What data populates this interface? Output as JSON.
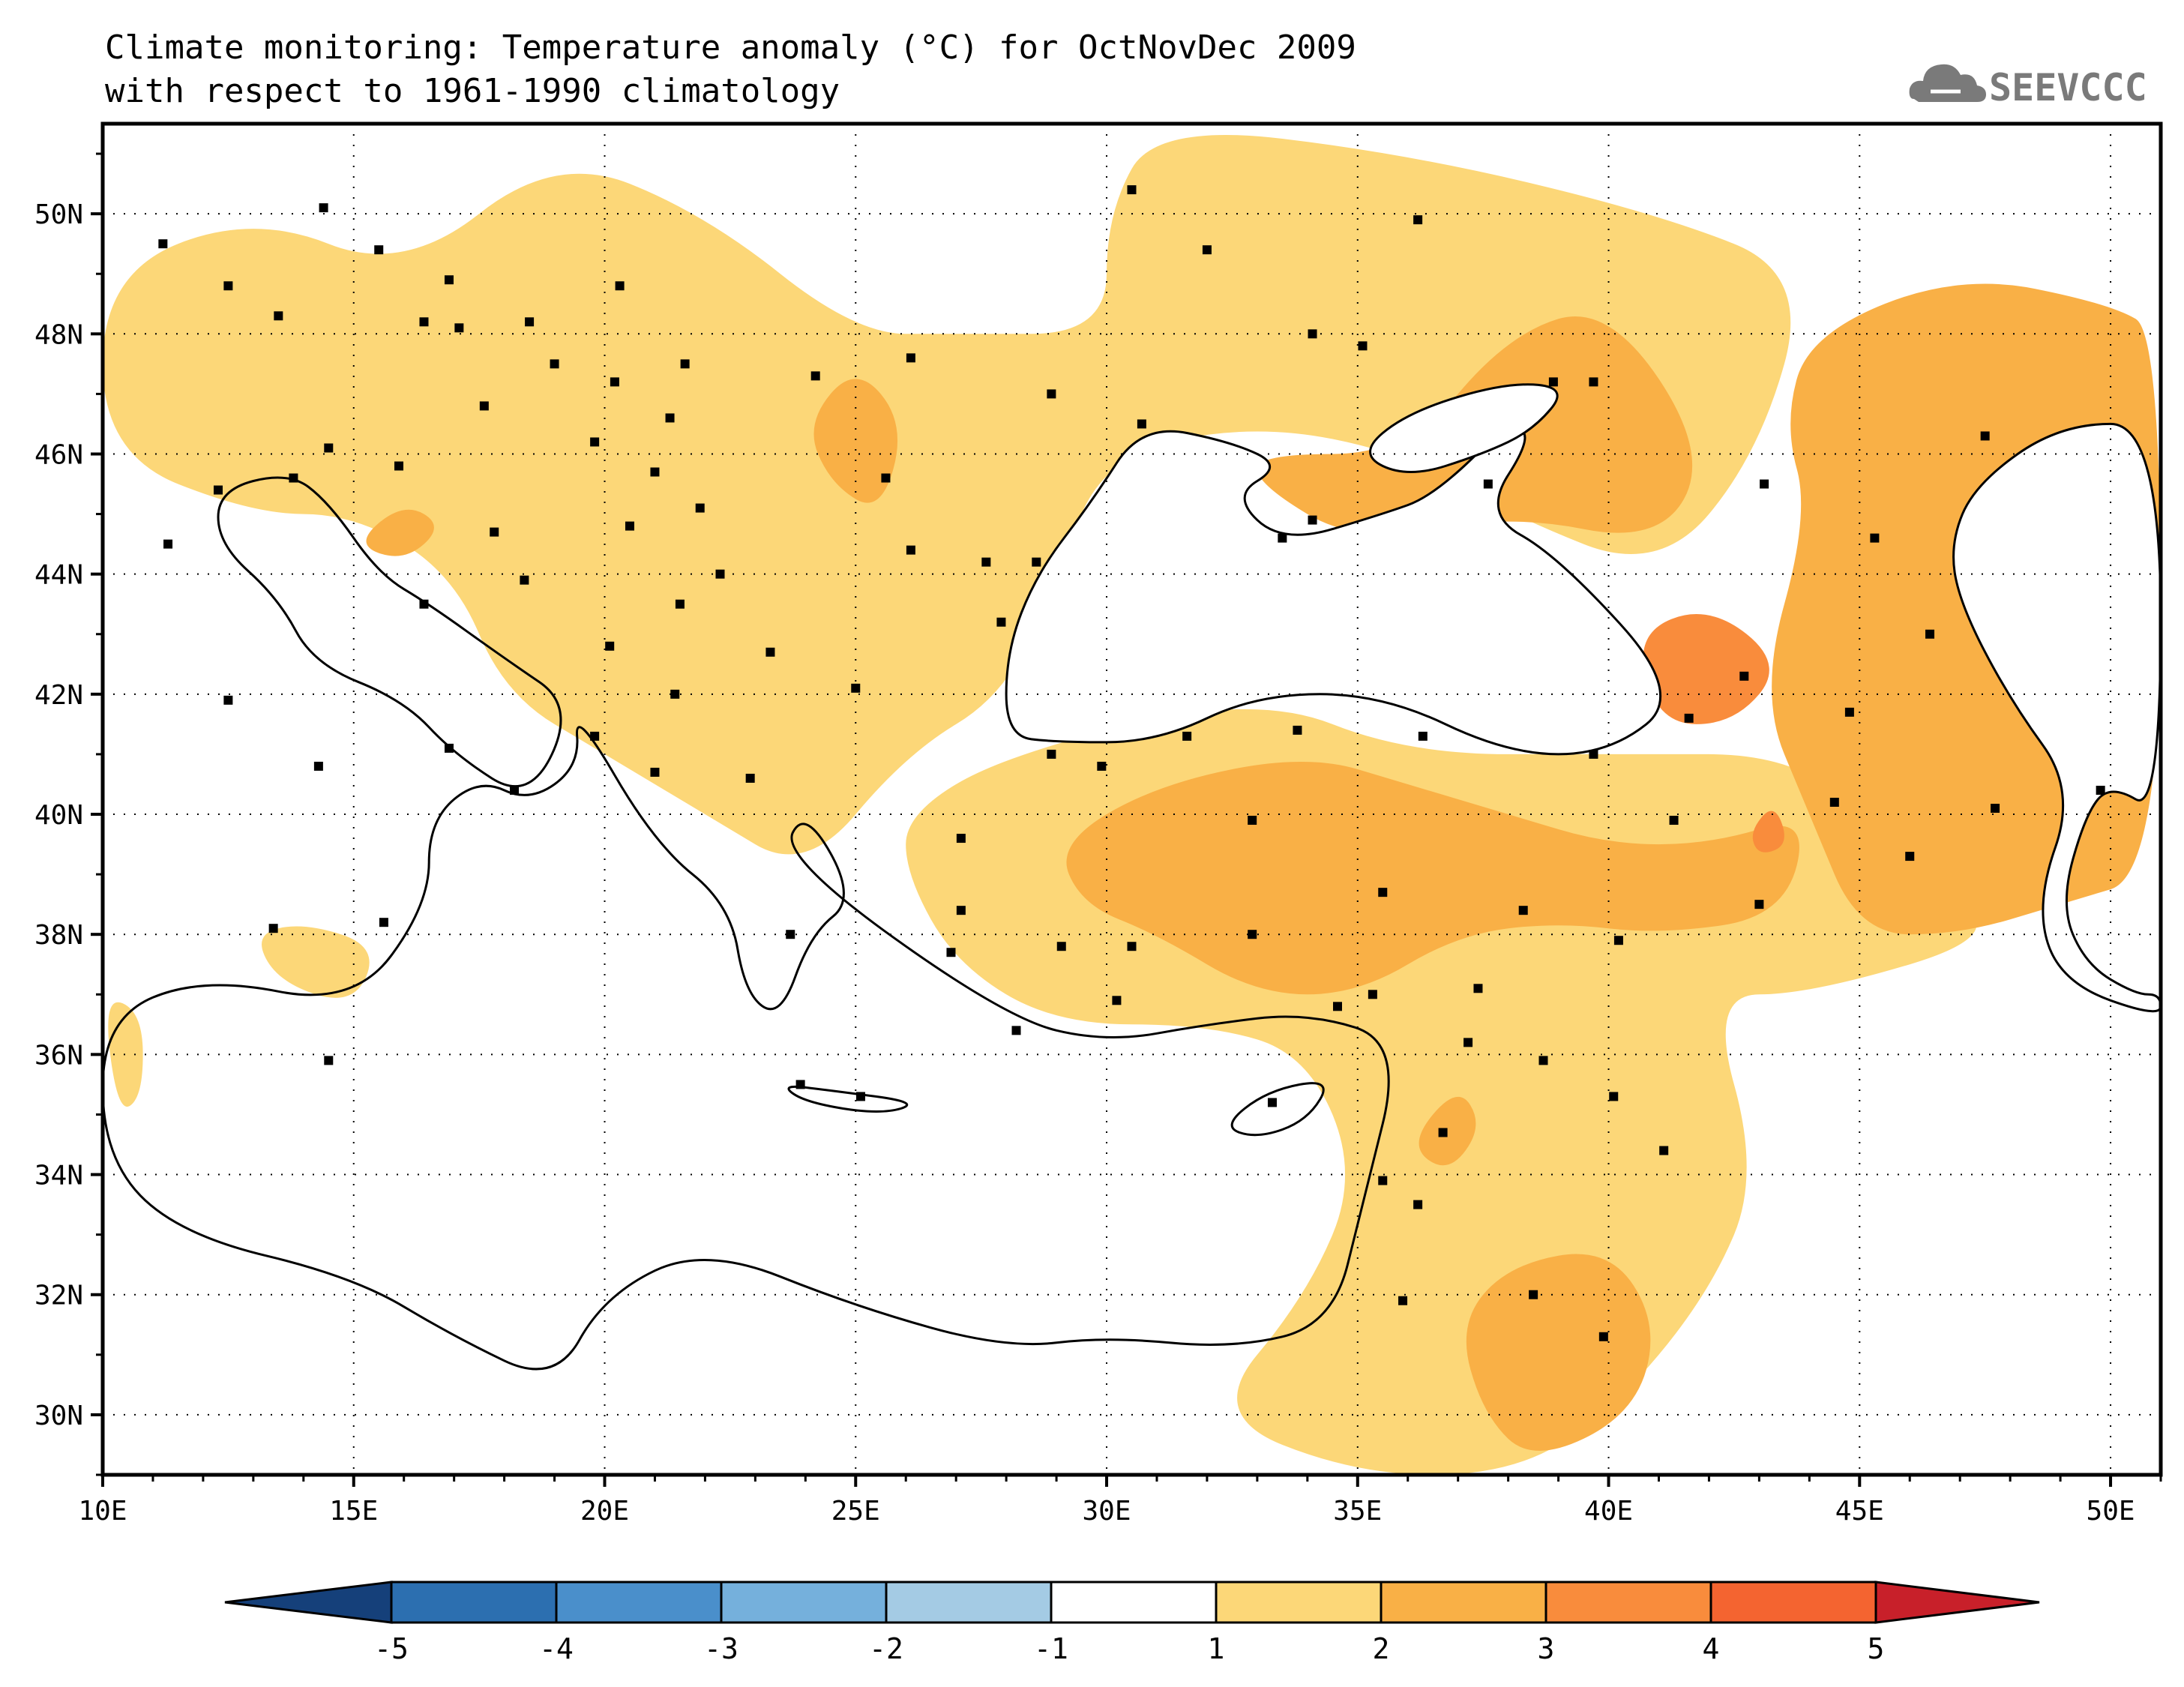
{
  "title": {
    "line1": "Climate monitoring: Temperature anomaly (°C) for OctNovDec 2009",
    "line2": "with respect to 1961-1990 climatology"
  },
  "logo": {
    "text": "SEEVCCC",
    "color": "#7a7a7a"
  },
  "map": {
    "lon_range": [
      10,
      51
    ],
    "lat_range": [
      29,
      51.5
    ],
    "lon_ticks": [
      10,
      15,
      20,
      25,
      30,
      35,
      40,
      45,
      50
    ],
    "lat_ticks": [
      30,
      32,
      34,
      36,
      38,
      40,
      42,
      44,
      46,
      48,
      50
    ],
    "lon_tick_labels": [
      "10E",
      "15E",
      "20E",
      "25E",
      "30E",
      "35E",
      "40E",
      "45E",
      "50E"
    ],
    "lat_tick_labels": [
      "30N",
      "32N",
      "34N",
      "36N",
      "38N",
      "40N",
      "42N",
      "44N",
      "46N",
      "48N",
      "50N"
    ],
    "grid": "dotted",
    "anomaly_regions": [
      {
        "class": "1 to 2",
        "color": "#fcd778",
        "polygon": [
          [
            10,
            49
          ],
          [
            13,
            50
          ],
          [
            16,
            49
          ],
          [
            19,
            51
          ],
          [
            22,
            50
          ],
          [
            25,
            48
          ],
          [
            27,
            48
          ],
          [
            30,
            48
          ],
          [
            30,
            50
          ],
          [
            31,
            51.5
          ],
          [
            36,
            51
          ],
          [
            41,
            50
          ],
          [
            44,
            49
          ],
          [
            43,
            46
          ],
          [
            41,
            44
          ],
          [
            38,
            45
          ],
          [
            36,
            46
          ],
          [
            33,
            46.5
          ],
          [
            30,
            46
          ],
          [
            29,
            44
          ],
          [
            28,
            42
          ],
          [
            26,
            41
          ],
          [
            24,
            39
          ],
          [
            22,
            40
          ],
          [
            20,
            41
          ],
          [
            18,
            42
          ],
          [
            17,
            44
          ],
          [
            15,
            45
          ],
          [
            13,
            45
          ],
          [
            10,
            46
          ]
        ]
      },
      {
        "class": "1 to 2",
        "color": "#fcd778",
        "polygon": [
          [
            26,
            40
          ],
          [
            28,
            41
          ],
          [
            33,
            42
          ],
          [
            36,
            41
          ],
          [
            40,
            41
          ],
          [
            44,
            41
          ],
          [
            46,
            39
          ],
          [
            48,
            38
          ],
          [
            44,
            37
          ],
          [
            42,
            37
          ],
          [
            43,
            34
          ],
          [
            42,
            32
          ],
          [
            40,
            30
          ],
          [
            38,
            29
          ],
          [
            35,
            29
          ],
          [
            32,
            30
          ],
          [
            34,
            32
          ],
          [
            35,
            34
          ],
          [
            34,
            36
          ],
          [
            32,
            36.5
          ],
          [
            29,
            36.5
          ],
          [
            27,
            37.5
          ],
          [
            26,
            39
          ]
        ]
      },
      {
        "class": "1 to 2",
        "color": "#fcd778",
        "polygon": [
          [
            13,
            38
          ],
          [
            14,
            38.2
          ],
          [
            15.5,
            37.8
          ],
          [
            15,
            36.8
          ],
          [
            13.5,
            37.2
          ]
        ]
      },
      {
        "class": "1 to 2",
        "color": "#fcd778",
        "polygon": [
          [
            10,
            37
          ],
          [
            10.8,
            36.7
          ],
          [
            10.8,
            35.3
          ],
          [
            10.3,
            35
          ]
        ]
      },
      {
        "class": "2 to 3",
        "color": "#f9b046",
        "polygon": [
          [
            29,
            39.5
          ],
          [
            31,
            40.5
          ],
          [
            34,
            41
          ],
          [
            36,
            40.5
          ],
          [
            38,
            40
          ],
          [
            40,
            39.5
          ],
          [
            42,
            39.5
          ],
          [
            44,
            40
          ],
          [
            43.5,
            38.3
          ],
          [
            41,
            38
          ],
          [
            39,
            38.2
          ],
          [
            37,
            38
          ],
          [
            35,
            37
          ],
          [
            33,
            37
          ],
          [
            31,
            38
          ],
          [
            29.5,
            38.5
          ]
        ]
      },
      {
        "class": "2 to 3",
        "color": "#f9b046",
        "polygon": [
          [
            44,
            48
          ],
          [
            47,
            49
          ],
          [
            50,
            48.5
          ],
          [
            51,
            48
          ],
          [
            51,
            39
          ],
          [
            49,
            38.5
          ],
          [
            47,
            38
          ],
          [
            45,
            38
          ],
          [
            44,
            40
          ],
          [
            43,
            42
          ],
          [
            44,
            45
          ],
          [
            43.5,
            46.5
          ]
        ]
      },
      {
        "class": "2 to 3",
        "color": "#f9b046",
        "polygon": [
          [
            33,
            46
          ],
          [
            36,
            46
          ],
          [
            38,
            48
          ],
          [
            40,
            48.5
          ],
          [
            42,
            46
          ],
          [
            41,
            44.5
          ],
          [
            38,
            45
          ],
          [
            35,
            44.5
          ],
          [
            33,
            45.5
          ]
        ]
      },
      {
        "class": "2 to 3",
        "color": "#f9b046",
        "polygon": [
          [
            37,
            31.5
          ],
          [
            38,
            32.5
          ],
          [
            40,
            32.8
          ],
          [
            41,
            31.5
          ],
          [
            40.5,
            30
          ],
          [
            38.5,
            29.2
          ],
          [
            37.5,
            30
          ]
        ]
      },
      {
        "class": "2 to 3",
        "color": "#f9b046",
        "polygon": [
          [
            24,
            46.5
          ],
          [
            25,
            47.5
          ],
          [
            26,
            46.5
          ],
          [
            25.5,
            45
          ],
          [
            24.5,
            45.5
          ]
        ]
      },
      {
        "class": "2 to 3",
        "color": "#f9b046",
        "polygon": [
          [
            36,
            34.5
          ],
          [
            37,
            35.5
          ],
          [
            37.5,
            34.8
          ],
          [
            36.8,
            34
          ]
        ]
      },
      {
        "class": "2 to 3",
        "color": "#f9b046",
        "polygon": [
          [
            15,
            44.5
          ],
          [
            16,
            45.2
          ],
          [
            16.8,
            44.8
          ],
          [
            16,
            44.2
          ]
        ]
      },
      {
        "class": "3 to 4",
        "color": "#f98c3c",
        "polygon": [
          [
            40.5,
            43
          ],
          [
            42,
            43.5
          ],
          [
            43.5,
            42.5
          ],
          [
            42.5,
            41.5
          ],
          [
            41,
            41.5
          ]
        ]
      },
      {
        "class": "3 to 4",
        "color": "#f98c3c",
        "polygon": [
          [
            42.8,
            39.7
          ],
          [
            43.3,
            40.2
          ],
          [
            43.6,
            39.5
          ],
          [
            43,
            39.3
          ]
        ]
      }
    ],
    "stations": [
      [
        11.2,
        49.5
      ],
      [
        12.5,
        48.8
      ],
      [
        13.5,
        48.3
      ],
      [
        14.4,
        50.1
      ],
      [
        16.4,
        48.2
      ],
      [
        17.1,
        48.1
      ],
      [
        19.0,
        47.5
      ],
      [
        21.6,
        47.5
      ],
      [
        20.3,
        48.8
      ],
      [
        21.3,
        46.6
      ],
      [
        20.5,
        44.8
      ],
      [
        21.5,
        43.5
      ],
      [
        22.3,
        44.0
      ],
      [
        20.1,
        42.8
      ],
      [
        18.4,
        43.9
      ],
      [
        17.8,
        44.7
      ],
      [
        16.4,
        43.5
      ],
      [
        15.9,
        45.8
      ],
      [
        14.5,
        46.1
      ],
      [
        13.8,
        45.6
      ],
      [
        12.3,
        45.4
      ],
      [
        11.3,
        44.5
      ],
      [
        12.5,
        41.9
      ],
      [
        14.3,
        40.8
      ],
      [
        16.9,
        41.1
      ],
      [
        18.2,
        40.4
      ],
      [
        15.6,
        38.2
      ],
      [
        13.4,
        38.1
      ],
      [
        14.5,
        35.9
      ],
      [
        23.7,
        38.0
      ],
      [
        22.9,
        40.6
      ],
      [
        21.0,
        40.7
      ],
      [
        19.8,
        41.3
      ],
      [
        21.4,
        42.0
      ],
      [
        23.3,
        42.7
      ],
      [
        25.0,
        42.1
      ],
      [
        26.1,
        44.4
      ],
      [
        27.6,
        44.2
      ],
      [
        28.6,
        44.2
      ],
      [
        27.9,
        43.2
      ],
      [
        25.6,
        45.6
      ],
      [
        24.2,
        47.3
      ],
      [
        26.1,
        47.6
      ],
      [
        28.9,
        47.0
      ],
      [
        30.7,
        46.5
      ],
      [
        30.5,
        50.4
      ],
      [
        32.0,
        49.4
      ],
      [
        34.1,
        48.0
      ],
      [
        36.2,
        49.9
      ],
      [
        35.1,
        47.8
      ],
      [
        33.5,
        44.6
      ],
      [
        34.1,
        44.9
      ],
      [
        37.6,
        45.5
      ],
      [
        39.7,
        47.2
      ],
      [
        38.9,
        47.2
      ],
      [
        44.5,
        40.2
      ],
      [
        44.8,
        41.7
      ],
      [
        42.7,
        42.3
      ],
      [
        41.6,
        41.6
      ],
      [
        39.7,
        41.0
      ],
      [
        36.3,
        41.3
      ],
      [
        32.9,
        39.9
      ],
      [
        35.5,
        38.7
      ],
      [
        38.3,
        38.4
      ],
      [
        41.3,
        39.9
      ],
      [
        43.0,
        38.5
      ],
      [
        40.2,
        37.9
      ],
      [
        37.4,
        37.1
      ],
      [
        35.3,
        37.0
      ],
      [
        34.6,
        36.8
      ],
      [
        32.9,
        38.0
      ],
      [
        30.5,
        37.8
      ],
      [
        29.1,
        37.8
      ],
      [
        27.1,
        38.4
      ],
      [
        26.9,
        37.7
      ],
      [
        27.1,
        39.6
      ],
      [
        28.9,
        41.0
      ],
      [
        29.9,
        40.8
      ],
      [
        31.6,
        41.3
      ],
      [
        33.8,
        41.4
      ],
      [
        36.2,
        33.5
      ],
      [
        35.5,
        33.9
      ],
      [
        36.7,
        34.7
      ],
      [
        37.2,
        36.2
      ],
      [
        38.7,
        35.9
      ],
      [
        40.1,
        35.3
      ],
      [
        41.1,
        34.4
      ],
      [
        35.9,
        31.9
      ],
      [
        38.5,
        32.0
      ],
      [
        39.9,
        31.3
      ],
      [
        33.3,
        35.2
      ],
      [
        25.1,
        35.3
      ],
      [
        23.9,
        35.5
      ],
      [
        28.2,
        36.4
      ],
      [
        30.2,
        36.9
      ],
      [
        46.0,
        39.3
      ],
      [
        47.7,
        40.1
      ],
      [
        49.8,
        40.4
      ],
      [
        46.4,
        43.0
      ],
      [
        47.5,
        46.3
      ],
      [
        45.3,
        44.6
      ],
      [
        43.1,
        45.5
      ],
      [
        21.0,
        45.7
      ],
      [
        21.9,
        45.1
      ],
      [
        19.8,
        46.2
      ],
      [
        20.2,
        47.2
      ],
      [
        17.6,
        46.8
      ],
      [
        16.9,
        48.9
      ],
      [
        18.5,
        48.2
      ],
      [
        15.5,
        49.4
      ]
    ]
  },
  "colorbar": {
    "labels": [
      "-5",
      "-4",
      "-3",
      "-2",
      "-1",
      "1",
      "2",
      "3",
      "4",
      "5"
    ],
    "colors": [
      "#15407a",
      "#2c6fb0",
      "#4a8fcb",
      "#75b0dc",
      "#a4cbe4",
      "#ffffff",
      "#fcd778",
      "#f9b046",
      "#f98c3c",
      "#f46430",
      "#e4321f",
      "#c8202a"
    ]
  }
}
